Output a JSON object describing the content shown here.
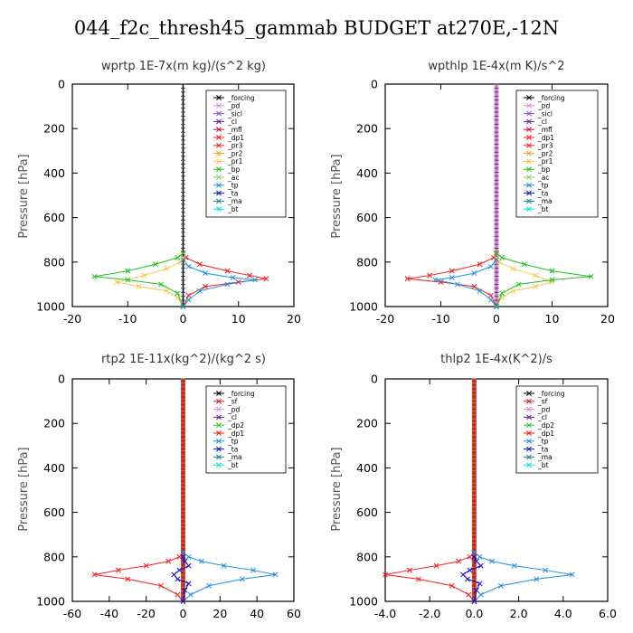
{
  "title": "044_f2c_thresh45_gammab  BUDGET at270E,-12N",
  "colors": {
    "_forcing": "#000000",
    "_pd": "#e08cd8",
    "_sicl": "#8a52c8",
    "_cl": "#5a1e8c",
    "_mfl": "#b81446",
    "_dp1": "#ee2020",
    "_pr3": "#ee2020",
    "_pr2": "#f0a020",
    "_pr1": "#f5c84a",
    "_bp": "#20c020",
    "_ac": "#8cd070",
    "_tp": "#2090e0",
    "_ta": "#1010cc",
    "_ma": "#208080",
    "_bt": "#00e0e0",
    "_sf": "#cc2020",
    "_dp2": "#30c030"
  },
  "chart_data": [
    {
      "type": "line",
      "title": "wprtp   1E-7x(m kg)/(s^2 kg)",
      "ylabel": "Pressure [hPa]",
      "xlim": [
        -20,
        20
      ],
      "ylim": [
        1000,
        0
      ],
      "xticks": [
        -20,
        -10,
        0,
        10,
        20
      ],
      "xtick_labels": [
        "-20",
        "-10",
        "0",
        "10",
        "20"
      ],
      "yticks": [
        0,
        200,
        400,
        600,
        800,
        1000
      ],
      "ytick_labels": [
        "0",
        "200",
        "400",
        "600",
        "800",
        "1000"
      ],
      "legend": [
        "_forcing",
        "_pd",
        "_sicl",
        "_cl",
        "_mfl",
        "_dp1",
        "_pr3",
        "_pr2",
        "_pr1",
        "_bp",
        "_ac",
        "_tp",
        "_ta",
        "_ma",
        "_bt"
      ],
      "legend_position": "top-right",
      "series": [
        {
          "name": "_forcing",
          "x": [
            0,
            0
          ],
          "y": [
            0,
            1000
          ]
        },
        {
          "name": "_pr3",
          "x": [
            0,
            0.5,
            3,
            8,
            12,
            15,
            10,
            4,
            1,
            0
          ],
          "y": [
            760,
            780,
            810,
            840,
            860,
            875,
            890,
            910,
            950,
            1000
          ]
        },
        {
          "name": "_pr1",
          "x": [
            0,
            -0.5,
            -3,
            -7,
            -12,
            -8,
            -3,
            -1,
            0
          ],
          "y": [
            780,
            800,
            830,
            860,
            890,
            910,
            930,
            960,
            1000
          ]
        },
        {
          "name": "_bp",
          "x": [
            0,
            -1,
            -5,
            -10,
            -16,
            -10,
            -4,
            -1,
            0
          ],
          "y": [
            760,
            780,
            810,
            840,
            865,
            880,
            900,
            940,
            1000
          ]
        },
        {
          "name": "_tp",
          "x": [
            0,
            1,
            4,
            9,
            13,
            8,
            3,
            1,
            0
          ],
          "y": [
            790,
            820,
            850,
            870,
            880,
            900,
            930,
            970,
            1000
          ]
        }
      ]
    },
    {
      "type": "line",
      "title": "wpthlp   1E-4x(m K)/s^2",
      "ylabel": "Pressure [hPa]",
      "xlim": [
        -20,
        20
      ],
      "ylim": [
        1000,
        0
      ],
      "xticks": [
        -20,
        -10,
        0,
        10,
        20
      ],
      "xtick_labels": [
        "-20",
        "-10",
        "0",
        "10",
        "20"
      ],
      "yticks": [
        0,
        200,
        400,
        600,
        800,
        1000
      ],
      "ytick_labels": [
        "0",
        "200",
        "400",
        "600",
        "800",
        "1000"
      ],
      "legend": [
        "_forcing",
        "_pd",
        "_sicl",
        "_cl",
        "_mfl",
        "_dp1",
        "_pr3",
        "_pr2",
        "_pr1",
        "_bp",
        "_ac",
        "_tp",
        "_ta",
        "_ma",
        "_bt"
      ],
      "legend_position": "top-right",
      "series": [
        {
          "name": "_pd",
          "x": [
            0,
            0
          ],
          "y": [
            0,
            1000
          ]
        },
        {
          "name": "_pr3",
          "x": [
            0,
            -0.5,
            -3,
            -8,
            -12,
            -16,
            -10,
            -4,
            -1,
            0
          ],
          "y": [
            760,
            780,
            810,
            840,
            860,
            875,
            890,
            910,
            950,
            1000
          ]
        },
        {
          "name": "_pr1",
          "x": [
            0,
            0.5,
            3,
            7,
            10,
            7,
            3,
            1,
            0
          ],
          "y": [
            780,
            800,
            830,
            860,
            890,
            910,
            930,
            960,
            1000
          ]
        },
        {
          "name": "_bp",
          "x": [
            0,
            1,
            5,
            10,
            17,
            10,
            4,
            1,
            0
          ],
          "y": [
            760,
            780,
            810,
            840,
            865,
            880,
            900,
            940,
            1000
          ]
        },
        {
          "name": "_tp",
          "x": [
            0,
            -1,
            -4,
            -8,
            -11,
            -7,
            -3,
            -1,
            0
          ],
          "y": [
            790,
            820,
            850,
            870,
            880,
            900,
            930,
            970,
            1000
          ]
        }
      ]
    },
    {
      "type": "line",
      "title": "rtp2   1E-11x(kg^2)/(kg^2 s)",
      "ylabel": "Pressure [hPa]",
      "xlim": [
        -60,
        60
      ],
      "ylim": [
        1000,
        0
      ],
      "xticks": [
        -60,
        -40,
        -20,
        0,
        20,
        40,
        60
      ],
      "xtick_labels": [
        "-60",
        "-40",
        "-20",
        "0",
        "20",
        "40",
        "60"
      ],
      "yticks": [
        0,
        200,
        400,
        600,
        800,
        1000
      ],
      "ytick_labels": [
        "0",
        "200",
        "400",
        "600",
        "800",
        "1000"
      ],
      "legend": [
        "_forcing",
        "_sf",
        "_pd",
        "_cl",
        "_dp2",
        "_dp1",
        "_tp",
        "_ta",
        "_ma",
        "_bt"
      ],
      "legend_position": "top-right",
      "series": [
        {
          "name": "_dp1",
          "x": [
            0,
            -2,
            -8,
            -20,
            -35,
            -48,
            -30,
            -12,
            -3,
            0
          ],
          "y": [
            780,
            800,
            820,
            840,
            860,
            880,
            900,
            930,
            970,
            1000
          ]
        },
        {
          "name": "_tp",
          "x": [
            0,
            3,
            10,
            22,
            38,
            50,
            32,
            14,
            4,
            0
          ],
          "y": [
            780,
            800,
            820,
            840,
            860,
            880,
            900,
            930,
            970,
            1000
          ]
        },
        {
          "name": "_ta",
          "x": [
            0,
            1,
            3,
            -2,
            -5,
            -3,
            3,
            1,
            0
          ],
          "y": [
            800,
            820,
            840,
            860,
            880,
            900,
            920,
            950,
            1000
          ]
        },
        {
          "name": "_forcing",
          "x": [
            0,
            0
          ],
          "y": [
            0,
            1000
          ]
        }
      ]
    },
    {
      "type": "line",
      "title": "thlp2   1E-4x(K^2)/s",
      "ylabel": "Pressure [hPa]",
      "xlim": [
        -4.0,
        6.0
      ],
      "ylim": [
        1000,
        0
      ],
      "xticks": [
        -4.0,
        -2.0,
        0.0,
        2.0,
        4.0,
        6.0
      ],
      "xtick_labels": [
        "-4.0",
        "-2.0",
        "0.0",
        "2.0",
        "4.0",
        "6.0"
      ],
      "yticks": [
        0,
        200,
        400,
        600,
        800,
        1000
      ],
      "ytick_labels": [
        "0",
        "200",
        "400",
        "600",
        "800",
        "1000"
      ],
      "legend": [
        "_forcing",
        "_sf",
        "_pd",
        "_cl",
        "_dp2",
        "_dp1",
        "_tp",
        "_ta",
        "_ma",
        "_bt"
      ],
      "legend_position": "top-right",
      "series": [
        {
          "name": "_dp1",
          "x": [
            0,
            -0.2,
            -0.7,
            -1.7,
            -2.9,
            -4.0,
            -2.5,
            -1.0,
            -0.25,
            0
          ],
          "y": [
            780,
            800,
            820,
            840,
            860,
            880,
            900,
            930,
            970,
            1000
          ]
        },
        {
          "name": "_tp",
          "x": [
            0,
            0.25,
            0.8,
            1.8,
            3.2,
            4.4,
            2.8,
            1.2,
            0.3,
            0
          ],
          "y": [
            780,
            800,
            820,
            840,
            860,
            880,
            900,
            930,
            970,
            1000
          ]
        },
        {
          "name": "_ta",
          "x": [
            0,
            0.1,
            0.3,
            -0.2,
            -0.5,
            -0.3,
            0.25,
            0.1,
            0
          ],
          "y": [
            800,
            820,
            840,
            860,
            880,
            900,
            920,
            950,
            1000
          ]
        },
        {
          "name": "_forcing",
          "x": [
            0,
            0
          ],
          "y": [
            0,
            1000
          ]
        }
      ]
    }
  ]
}
